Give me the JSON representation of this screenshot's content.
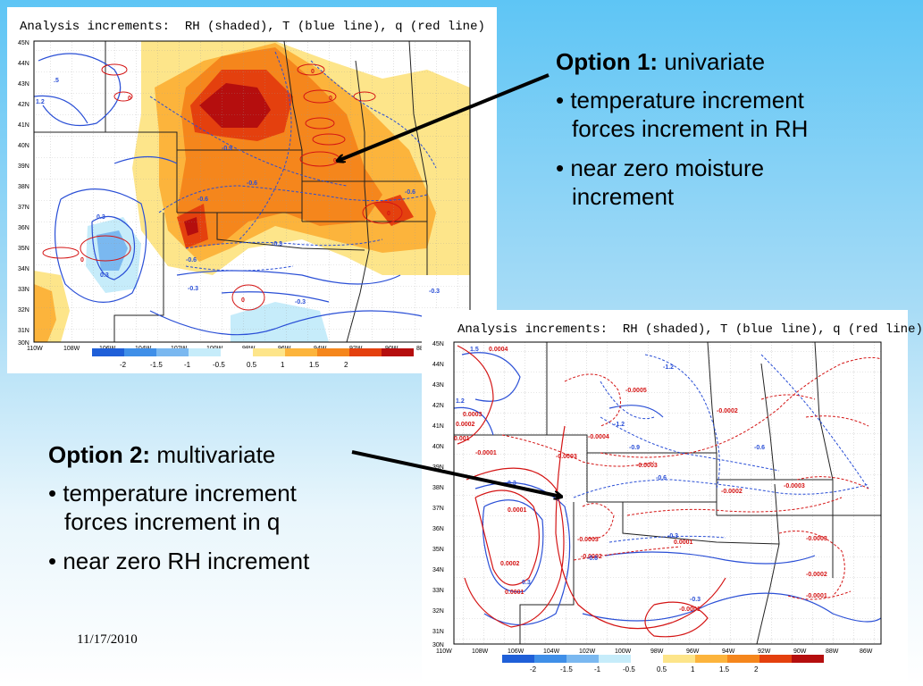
{
  "map_top": {
    "title": "Analysis increments:  RH (shaded), T (blue line), q (red line)",
    "lat_labels": [
      "45N",
      "44N",
      "43N",
      "42N",
      "41N",
      "40N",
      "39N",
      "38N",
      "37N",
      "36N",
      "35N",
      "34N",
      "33N",
      "32N",
      "31N",
      "30N"
    ],
    "lon_labels": [
      "110W",
      "108W",
      "106W",
      "104W",
      "102W",
      "100W",
      "98W",
      "96W",
      "94W",
      "92W",
      "90W",
      "88"
    ],
    "contour_labels": [
      ".5",
      "1.2",
      "0.3",
      "0.3",
      "-0.9",
      "-0.6",
      "-0.6",
      "-0.6",
      "-0.6",
      "-0.3",
      "-0.3",
      "-0.3",
      "-0.3",
      "0",
      "0",
      "0",
      "0",
      "0",
      "0",
      "0"
    ],
    "colorbar": [
      "-2",
      "-1.5",
      "-1",
      "-0.5",
      "0.5",
      "1",
      "1.5",
      "2"
    ]
  },
  "map_bottom": {
    "title": "Analysis increments:  RH (shaded), T (blue line), q (red line)",
    "lat_labels": [
      "45N",
      "44N",
      "43N",
      "42N",
      "41N",
      "40N",
      "39N",
      "38N",
      "37N",
      "36N",
      "35N",
      "34N",
      "33N",
      "32N",
      "31N",
      "30N"
    ],
    "lon_labels": [
      "110W",
      "108W",
      "106W",
      "104W",
      "102W",
      "100W",
      "98W",
      "96W",
      "94W",
      "92W",
      "90W",
      "88W",
      "86W"
    ],
    "contour_labels": [
      "1.5",
      "0.0004",
      "-1.2",
      "1.2",
      "-0.0005",
      "-1.2",
      "-0.0004",
      "0.0003",
      "0.0002",
      "0.001",
      "-0.0001",
      "-0.0003",
      "-0.0003",
      "-0.9",
      "-0.6",
      "-0.6",
      "-0.0002",
      "-0.0002",
      "-0.0003",
      "0.3",
      "0.0001",
      "0.0002",
      "-0.0003",
      "-0.0002",
      "0.0001",
      "-0.3",
      "-0.0003",
      "-0.0002",
      "-0.0001",
      "-0.3",
      "0.0001",
      "-0.6",
      "-0.0001",
      "0.3"
    ],
    "colorbar": [
      "-2",
      "-1.5",
      "-1",
      "-0.5",
      "0.5",
      "1",
      "1.5",
      "2"
    ]
  },
  "option1": {
    "heading_bold": "Option 1:",
    "heading_rest": " univariate",
    "bullet1_line1": "• temperature increment",
    "bullet1_line2": "forces increment in RH",
    "bullet2_line1": "• near zero moisture",
    "bullet2_line2": "increment"
  },
  "option2": {
    "heading_bold": "Option 2:",
    "heading_rest": " multivariate",
    "bullet1_line1": "• temperature increment",
    "bullet1_line2": "forces increment in q",
    "bullet2_line1": "• near zero RH increment"
  },
  "footer": {
    "date": "11/17/2010"
  },
  "colors": {
    "rh_scale": [
      "#1f5fd8",
      "#3f8fe8",
      "#7ab8f0",
      "#c6ecfa",
      "#ffffff",
      "#fde58a",
      "#fcb43c",
      "#f5861c",
      "#e4400e",
      "#b50e0e"
    ],
    "temperature_line": "#2a4fd6",
    "humidity_line": "#d41414"
  }
}
